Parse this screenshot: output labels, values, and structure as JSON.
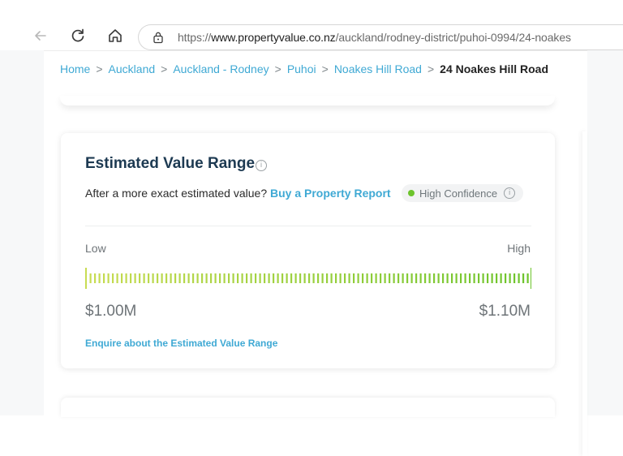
{
  "browser": {
    "url_prefix": "https://",
    "url_domain": "www.propertyvalue.co.nz",
    "url_path": "/auckland/rodney-district/puhoi-0994/24-noakes",
    "icons": [
      "back-arrow-icon",
      "reload-icon",
      "home-icon",
      "site-info-icon"
    ]
  },
  "breadcrumb": {
    "items": [
      "Home",
      "Auckland",
      "Auckland - Rodney",
      "Puhoi",
      "Noakes Hill Road"
    ],
    "separator": ">",
    "current": "24 Noakes Hill Road"
  },
  "estimate_card": {
    "title": "Estimated Value Range",
    "subtitle": "After a more exact estimated value?",
    "buy_link": "Buy a Property Report",
    "confidence": "High Confidence",
    "low_label": "Low",
    "high_label": "High",
    "low_value": "$1.00M",
    "high_value": "$1.10M",
    "enquire_link": "Enquire about the Estimated Value Range",
    "bar_colors": {
      "start": "#c8dc52",
      "end": "#6dc42c"
    }
  }
}
